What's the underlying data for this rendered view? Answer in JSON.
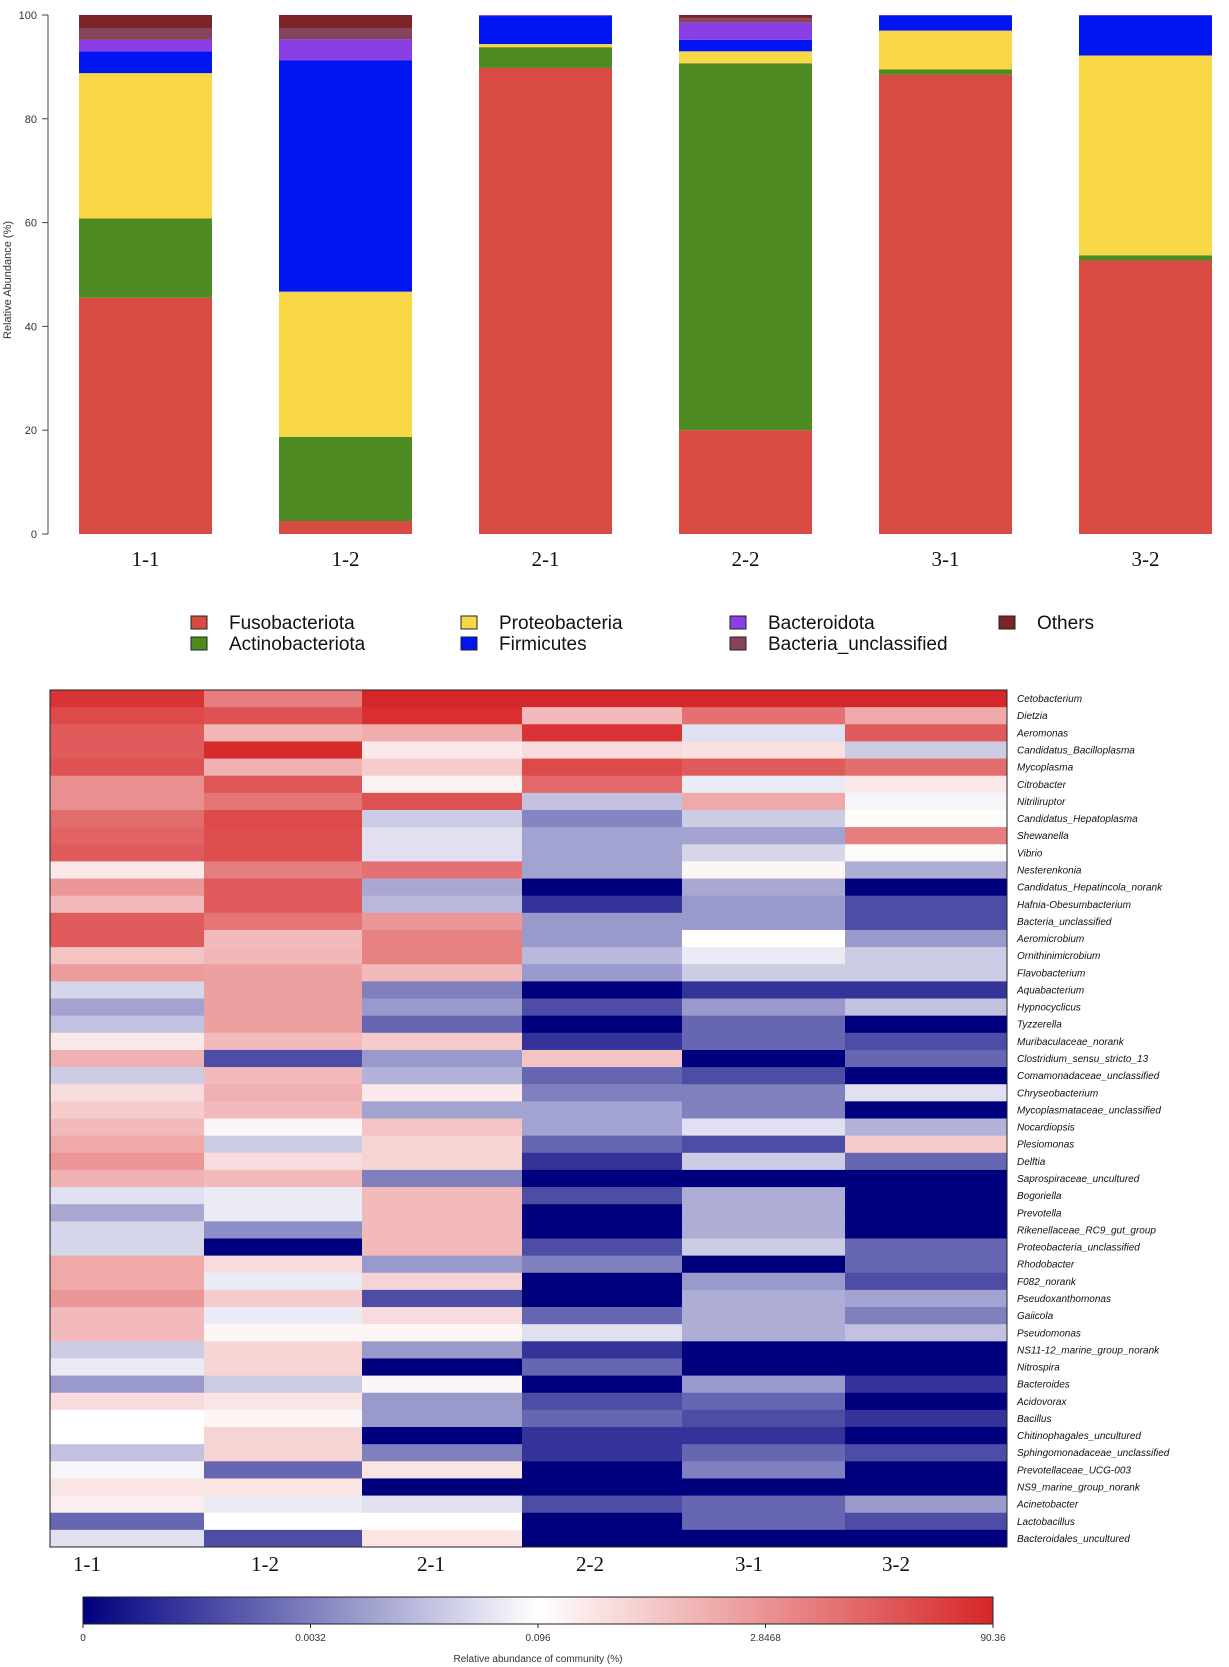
{
  "chart_data": [
    {
      "type": "bar",
      "subtype": "stacked",
      "ylabel": "Relative Abundance (%)",
      "ylim": [
        0,
        100
      ],
      "yticks": [
        0,
        20,
        40,
        60,
        80,
        100
      ],
      "categories": [
        "1-1",
        "1-2",
        "2-1",
        "2-2",
        "3-1",
        "3-2"
      ],
      "series": [
        {
          "name": "Fusobacteriota",
          "color": "#d94a43",
          "values": [
            45.5,
            2.5,
            89.8,
            20.0,
            88.5,
            52.7
          ]
        },
        {
          "name": "Actinobacteriota",
          "color": "#4e8a22",
          "values": [
            15.3,
            16.2,
            4.0,
            70.7,
            1.0,
            1.0
          ]
        },
        {
          "name": "Proteobacteria",
          "color": "#f8d747",
          "values": [
            28.0,
            28.0,
            0.6,
            2.3,
            7.5,
            38.5
          ]
        },
        {
          "name": "Firmicutes",
          "color": "#0015f0",
          "values": [
            4.2,
            44.6,
            5.4,
            2.2,
            2.9,
            7.7
          ]
        },
        {
          "name": "Bacteroidota",
          "color": "#8a3ee6",
          "values": [
            2.2,
            4.0,
            0.1,
            3.3,
            0.05,
            0.05
          ]
        },
        {
          "name": "Bacteria_unclassified",
          "color": "#85435e",
          "values": [
            2.3,
            2.2,
            0.05,
            0.9,
            0.02,
            0.02
          ]
        },
        {
          "name": "Others",
          "color": "#7b2327",
          "values": [
            2.5,
            2.5,
            0.05,
            0.6,
            0.03,
            0.03
          ]
        }
      ],
      "legend_position": "bottom"
    },
    {
      "type": "heatmap",
      "columns": [
        "1-1",
        "1-2",
        "2-1",
        "2-2",
        "3-1",
        "3-2"
      ],
      "scale_note": "cell values are colour-scale positions from 0 (deep blue) through 0.5 (white) to 1 (red)",
      "rows": [
        {
          "name": "Cetobacterium",
          "values": [
            0.97,
            0.8,
            1.0,
            1.0,
            1.0,
            1.0
          ]
        },
        {
          "name": "Dietzia",
          "values": [
            0.92,
            0.9,
            0.98,
            0.66,
            0.83,
            0.7
          ]
        },
        {
          "name": "Aeromonas",
          "values": [
            0.88,
            0.67,
            0.69,
            0.97,
            0.44,
            0.88
          ]
        },
        {
          "name": "Candidatus_Bacilloplasma",
          "values": [
            0.88,
            0.99,
            0.55,
            0.58,
            0.57,
            0.4
          ]
        },
        {
          "name": "Mycoplasma",
          "values": [
            0.9,
            0.68,
            0.62,
            0.92,
            0.88,
            0.84
          ]
        },
        {
          "name": "Citrobacter",
          "values": [
            0.76,
            0.89,
            0.53,
            0.85,
            0.46,
            0.55
          ]
        },
        {
          "name": "Nitriliruptor",
          "values": [
            0.76,
            0.82,
            0.9,
            0.38,
            0.7,
            0.48
          ]
        },
        {
          "name": "Candidatus_Hepatoplasma",
          "values": [
            0.84,
            0.92,
            0.4,
            0.26,
            0.4,
            0.51
          ]
        },
        {
          "name": "Shewanella",
          "values": [
            0.86,
            0.91,
            0.44,
            0.32,
            0.32,
            0.8
          ]
        },
        {
          "name": "Vibrio",
          "values": [
            0.88,
            0.91,
            0.44,
            0.32,
            0.42,
            0.51
          ]
        },
        {
          "name": "Nesterenkonia",
          "values": [
            0.55,
            0.8,
            0.83,
            0.32,
            0.52,
            0.34
          ]
        },
        {
          "name": "Candidatus_Hepatincola_norank",
          "values": [
            0.74,
            0.88,
            0.33,
            0.0,
            0.33,
            0.0
          ]
        },
        {
          "name": "Hafnia-Obesumbacterium",
          "values": [
            0.66,
            0.88,
            0.36,
            0.1,
            0.3,
            0.15
          ]
        },
        {
          "name": "Bacteria_unclassified",
          "values": [
            0.88,
            0.82,
            0.74,
            0.3,
            0.3,
            0.15
          ]
        },
        {
          "name": "Aeromicrobium",
          "values": [
            0.88,
            0.66,
            0.79,
            0.3,
            0.5,
            0.3
          ]
        },
        {
          "name": "Ornithinimicrobium",
          "values": [
            0.64,
            0.67,
            0.79,
            0.36,
            0.46,
            0.4
          ]
        },
        {
          "name": "Flavobacterium",
          "values": [
            0.73,
            0.72,
            0.66,
            0.3,
            0.4,
            0.4
          ]
        },
        {
          "name": "Aquabacterium",
          "values": [
            0.42,
            0.72,
            0.25,
            0.0,
            0.1,
            0.1
          ]
        },
        {
          "name": "Hypnocyclicus",
          "values": [
            0.32,
            0.72,
            0.3,
            0.15,
            0.3,
            0.38
          ]
        },
        {
          "name": "Tyzzerella",
          "values": [
            0.38,
            0.72,
            0.2,
            0.0,
            0.2,
            0.0
          ]
        },
        {
          "name": "Muribaculaceae_norank",
          "values": [
            0.55,
            0.66,
            0.62,
            0.1,
            0.2,
            0.15
          ]
        },
        {
          "name": "Clostridium_sensu_stricto_13",
          "values": [
            0.68,
            0.15,
            0.3,
            0.64,
            0.0,
            0.2
          ]
        },
        {
          "name": "Comamonadaceae_unclassified",
          "values": [
            0.4,
            0.66,
            0.35,
            0.2,
            0.15,
            0.0
          ]
        },
        {
          "name": "Chryseobacterium",
          "values": [
            0.58,
            0.68,
            0.55,
            0.25,
            0.25,
            0.44
          ]
        },
        {
          "name": "Mycoplasmataceae_unclassified",
          "values": [
            0.62,
            0.66,
            0.32,
            0.32,
            0.25,
            0.0
          ]
        },
        {
          "name": "Nocardiopsis",
          "values": [
            0.66,
            0.52,
            0.64,
            0.32,
            0.44,
            0.35
          ]
        },
        {
          "name": "Plesiomonas",
          "values": [
            0.7,
            0.4,
            0.6,
            0.2,
            0.15,
            0.62
          ]
        },
        {
          "name": "Delftia",
          "values": [
            0.74,
            0.58,
            0.6,
            0.1,
            0.4,
            0.2
          ]
        },
        {
          "name": "Saprospiraceae_uncultured",
          "values": [
            0.68,
            0.66,
            0.25,
            0.0,
            0.0,
            0.0
          ]
        },
        {
          "name": "Bogoriella",
          "values": [
            0.44,
            0.46,
            0.66,
            0.15,
            0.34,
            0.0
          ]
        },
        {
          "name": "Prevotella",
          "values": [
            0.33,
            0.46,
            0.66,
            0.0,
            0.34,
            0.0
          ]
        },
        {
          "name": "Rikenellaceae_RC9_gut_group",
          "values": [
            0.42,
            0.28,
            0.66,
            0.0,
            0.34,
            0.0
          ]
        },
        {
          "name": "Proteobacteria_unclassified",
          "values": [
            0.42,
            0.0,
            0.66,
            0.15,
            0.4,
            0.2
          ]
        },
        {
          "name": "Rhodobacter",
          "values": [
            0.7,
            0.58,
            0.3,
            0.25,
            0.0,
            0.2
          ]
        },
        {
          "name": "F082_norank",
          "values": [
            0.7,
            0.46,
            0.6,
            0.0,
            0.3,
            0.15
          ]
        },
        {
          "name": "Pseudoxanthomonas",
          "values": [
            0.74,
            0.62,
            0.15,
            0.0,
            0.34,
            0.32
          ]
        },
        {
          "name": "Gaiicola",
          "values": [
            0.66,
            0.46,
            0.58,
            0.2,
            0.34,
            0.25
          ]
        },
        {
          "name": "Pseudomonas",
          "values": [
            0.66,
            0.52,
            0.52,
            0.44,
            0.34,
            0.38
          ]
        },
        {
          "name": "NS11-12_marine_group_norank",
          "values": [
            0.4,
            0.6,
            0.3,
            0.1,
            0.0,
            0.0
          ]
        },
        {
          "name": "Nitrospira",
          "values": [
            0.46,
            0.6,
            0.0,
            0.2,
            0.0,
            0.0
          ]
        },
        {
          "name": "Bacteroides",
          "values": [
            0.3,
            0.4,
            0.52,
            0.0,
            0.3,
            0.1
          ]
        },
        {
          "name": "Acidovorax",
          "values": [
            0.58,
            0.56,
            0.3,
            0.15,
            0.2,
            0.0
          ]
        },
        {
          "name": "Bacillus",
          "values": [
            0.5,
            0.52,
            0.3,
            0.2,
            0.15,
            0.1
          ]
        },
        {
          "name": "Chitinophagales_uncultured",
          "values": [
            0.5,
            0.6,
            0.0,
            0.1,
            0.1,
            0.0
          ]
        },
        {
          "name": "Sphingomonadaceae_unclassified",
          "values": [
            0.38,
            0.6,
            0.25,
            0.1,
            0.2,
            0.15
          ]
        },
        {
          "name": "Prevotellaceae_UCG-003",
          "values": [
            0.48,
            0.2,
            0.56,
            0.0,
            0.25,
            0.0
          ]
        },
        {
          "name": "NS9_marine_group_norank",
          "values": [
            0.56,
            0.56,
            0.0,
            0.0,
            0.0,
            0.0
          ]
        },
        {
          "name": "Acinetobacter",
          "values": [
            0.54,
            0.46,
            0.44,
            0.15,
            0.2,
            0.3
          ]
        },
        {
          "name": "Lactobacillus",
          "values": [
            0.2,
            0.5,
            0.5,
            0.0,
            0.2,
            0.15
          ]
        },
        {
          "name": "Bacteroidales_uncultured",
          "values": [
            0.44,
            0.15,
            0.56,
            0.0,
            0.0,
            0.0
          ]
        }
      ],
      "colorbar": {
        "title": "Relative abundance of community (%)",
        "ticks": [
          "0",
          "0.0032",
          "0.096",
          "2.8468",
          "90.36"
        ],
        "colors": [
          "#00007f",
          "#ffffff",
          "#d62728"
        ]
      }
    }
  ]
}
